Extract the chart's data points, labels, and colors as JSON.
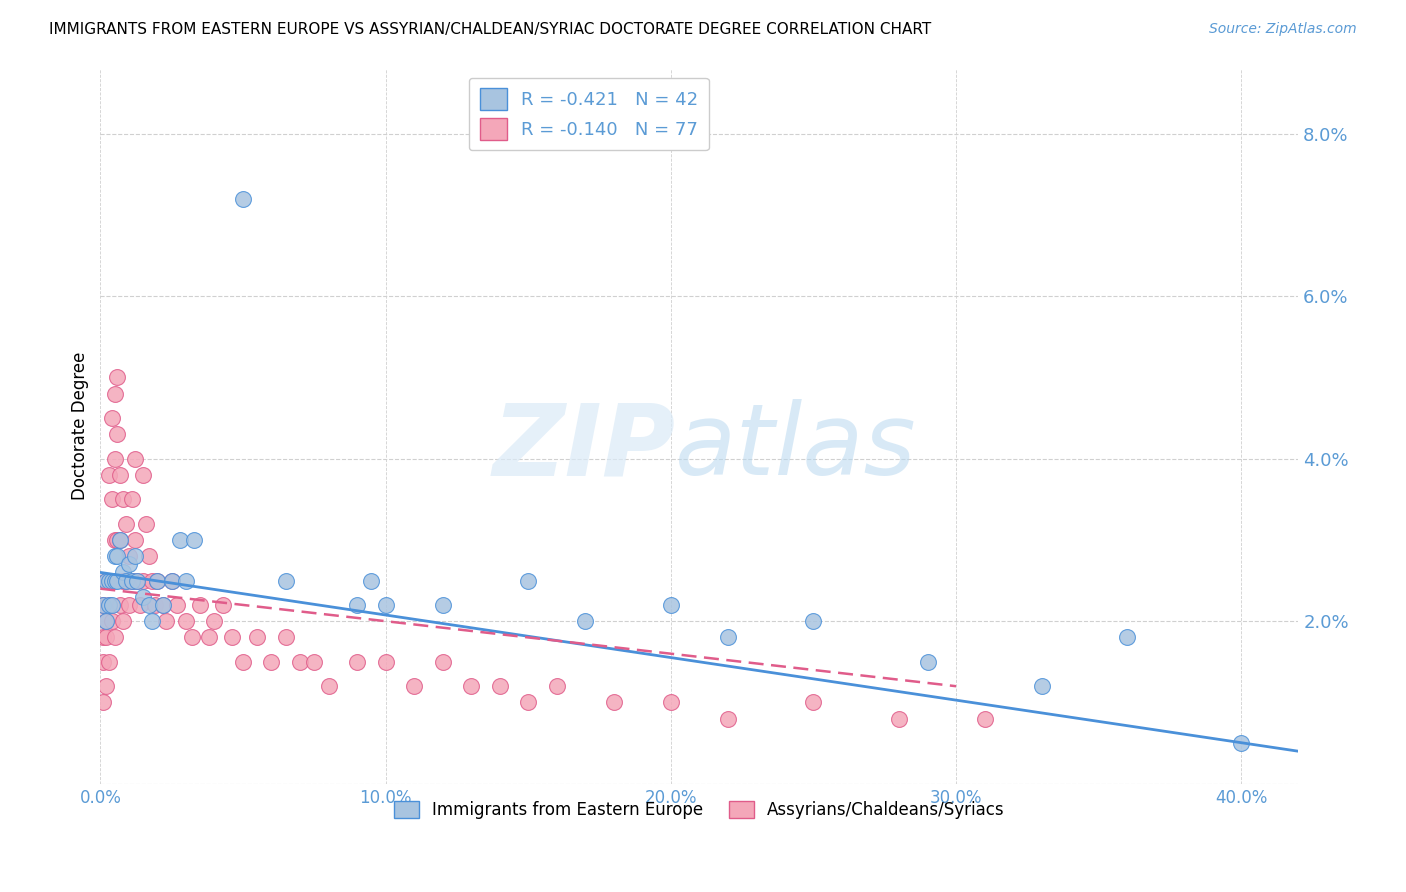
{
  "title": "IMMIGRANTS FROM EASTERN EUROPE VS ASSYRIAN/CHALDEAN/SYRIAC DOCTORATE DEGREE CORRELATION CHART",
  "source": "Source: ZipAtlas.com",
  "ylabel": "Doctorate Degree",
  "legend_labels": [
    "Immigrants from Eastern Europe",
    "Assyrians/Chaldeans/Syriacs"
  ],
  "series1_color": "#a8c4e0",
  "series2_color": "#f4a7b9",
  "series1_line_color": "#4a90d9",
  "series2_line_color": "#e05c8a",
  "xlim": [
    0.0,
    0.42
  ],
  "ylim": [
    0.0,
    0.088
  ],
  "yticks": [
    0.0,
    0.02,
    0.04,
    0.06,
    0.08
  ],
  "xticks": [
    0.0,
    0.1,
    0.2,
    0.3,
    0.4
  ],
  "blue_R": -0.421,
  "blue_N": 42,
  "pink_R": -0.14,
  "pink_N": 77,
  "background_color": "#ffffff",
  "grid_color": "#d0d0d0",
  "title_fontsize": 11,
  "axis_label_color": "#5b9bd5",
  "tick_label_color": "#5b9bd5",
  "blue_x": [
    0.001,
    0.002,
    0.002,
    0.003,
    0.003,
    0.004,
    0.004,
    0.005,
    0.005,
    0.006,
    0.006,
    0.007,
    0.008,
    0.009,
    0.01,
    0.011,
    0.012,
    0.013,
    0.015,
    0.017,
    0.018,
    0.02,
    0.022,
    0.025,
    0.028,
    0.03,
    0.033,
    0.05,
    0.065,
    0.09,
    0.095,
    0.1,
    0.12,
    0.15,
    0.17,
    0.2,
    0.22,
    0.25,
    0.29,
    0.33,
    0.36,
    0.4
  ],
  "blue_y": [
    0.022,
    0.025,
    0.02,
    0.025,
    0.022,
    0.025,
    0.022,
    0.025,
    0.028,
    0.025,
    0.028,
    0.03,
    0.026,
    0.025,
    0.027,
    0.025,
    0.028,
    0.025,
    0.023,
    0.022,
    0.02,
    0.025,
    0.022,
    0.025,
    0.03,
    0.025,
    0.03,
    0.072,
    0.025,
    0.022,
    0.025,
    0.022,
    0.022,
    0.025,
    0.02,
    0.022,
    0.018,
    0.02,
    0.015,
    0.012,
    0.018,
    0.005
  ],
  "pink_x": [
    0.001,
    0.001,
    0.001,
    0.001,
    0.002,
    0.002,
    0.002,
    0.002,
    0.003,
    0.003,
    0.003,
    0.003,
    0.004,
    0.004,
    0.004,
    0.005,
    0.005,
    0.005,
    0.005,
    0.006,
    0.006,
    0.006,
    0.007,
    0.007,
    0.007,
    0.008,
    0.008,
    0.008,
    0.009,
    0.009,
    0.01,
    0.01,
    0.011,
    0.011,
    0.012,
    0.012,
    0.013,
    0.014,
    0.015,
    0.015,
    0.016,
    0.017,
    0.018,
    0.019,
    0.02,
    0.022,
    0.023,
    0.025,
    0.027,
    0.03,
    0.032,
    0.035,
    0.038,
    0.04,
    0.043,
    0.046,
    0.05,
    0.055,
    0.06,
    0.065,
    0.07,
    0.075,
    0.08,
    0.09,
    0.1,
    0.11,
    0.12,
    0.13,
    0.14,
    0.15,
    0.16,
    0.18,
    0.2,
    0.22,
    0.25,
    0.28,
    0.31
  ],
  "pink_y": [
    0.022,
    0.018,
    0.015,
    0.01,
    0.025,
    0.02,
    0.018,
    0.012,
    0.038,
    0.025,
    0.022,
    0.015,
    0.045,
    0.035,
    0.02,
    0.048,
    0.04,
    0.03,
    0.018,
    0.05,
    0.043,
    0.03,
    0.038,
    0.03,
    0.022,
    0.035,
    0.025,
    0.02,
    0.032,
    0.025,
    0.028,
    0.022,
    0.035,
    0.025,
    0.04,
    0.03,
    0.025,
    0.022,
    0.038,
    0.025,
    0.032,
    0.028,
    0.025,
    0.022,
    0.025,
    0.022,
    0.02,
    0.025,
    0.022,
    0.02,
    0.018,
    0.022,
    0.018,
    0.02,
    0.022,
    0.018,
    0.015,
    0.018,
    0.015,
    0.018,
    0.015,
    0.015,
    0.012,
    0.015,
    0.015,
    0.012,
    0.015,
    0.012,
    0.012,
    0.01,
    0.012,
    0.01,
    0.01,
    0.008,
    0.01,
    0.008,
    0.008
  ],
  "blue_trend_x0": 0.0,
  "blue_trend_x1": 0.42,
  "blue_trend_y0": 0.026,
  "blue_trend_y1": 0.004,
  "pink_trend_x0": 0.0,
  "pink_trend_x1": 0.3,
  "pink_trend_y0": 0.024,
  "pink_trend_y1": 0.012
}
